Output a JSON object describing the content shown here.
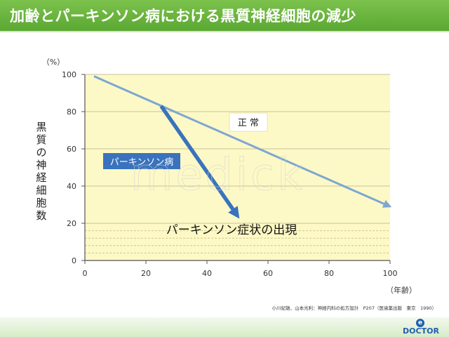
{
  "header": {
    "title": "加齢とパーキンソン病における黒質神経細胞の減少"
  },
  "chart_data": {
    "type": "line",
    "x_unit_label": "（年齢）",
    "y_unit_label": "（%）",
    "ylabel": "黒質の神経細胞数",
    "xlim": [
      0,
      100
    ],
    "ylim": [
      0,
      100
    ],
    "x_ticks": [
      0,
      20,
      40,
      60,
      80,
      100
    ],
    "y_ticks": [
      0,
      20,
      40,
      60,
      80,
      100
    ],
    "grid": "horizontal",
    "threshold_band": [
      0,
      20
    ],
    "series": [
      {
        "name": "正 常",
        "color": "#7ea6d3",
        "points": [
          [
            3,
            99
          ],
          [
            100,
            29
          ]
        ]
      },
      {
        "name": "パーキンソン病",
        "color": "#3a73bd",
        "points": [
          [
            25,
            83
          ],
          [
            50,
            24
          ]
        ]
      }
    ],
    "annotations": {
      "normal_label": "正 常",
      "pd_label": "パーキンソン病",
      "symptom_label": "パーキンソン症状の出現"
    }
  },
  "watermark": "medick",
  "footer": {
    "citation": "小川紀雄、山本光利：神経内科の処方設計　P207（医歯薬出版　東京　1990）",
    "logo_text": "DOCTOR",
    "logo_mark": "e"
  }
}
